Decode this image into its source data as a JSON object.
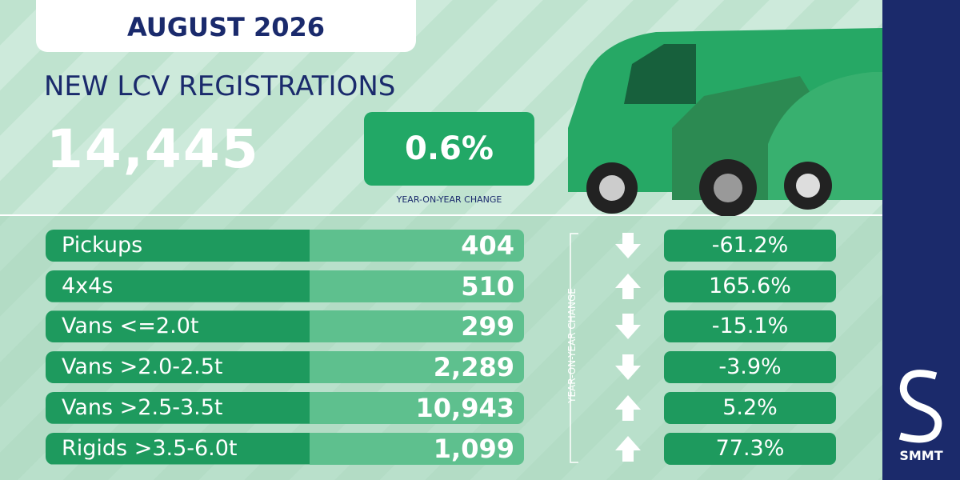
{
  "header": {
    "title": "AUGUST 2026"
  },
  "headline": {
    "label": "NEW LCV REGISTRATIONS",
    "total": "14,445",
    "change": "0.6%",
    "change_label": "YEAR-ON-YEAR CHANGE"
  },
  "table": {
    "change_label": "YEAR-ON-YEAR CHANGE",
    "rows": [
      {
        "category": "Pickups",
        "units": "404",
        "change": "-61.2%"
      },
      {
        "category": "4x4s",
        "units": "510",
        "change": "165.6%"
      },
      {
        "category": "Vans <=2.0t",
        "units": "299",
        "change": "-15.1%"
      },
      {
        "category": "Vans >2.0-2.5t",
        "units": "2,289",
        "change": "-3.9%"
      },
      {
        "category": "Vans >2.5-3.5t",
        "units": "10,943",
        "change": "5.2%"
      },
      {
        "category": "Rigids >3.5-6.0t",
        "units": "1,099",
        "change": "77.3%"
      }
    ]
  },
  "brand": {
    "name": "SMMT"
  }
}
